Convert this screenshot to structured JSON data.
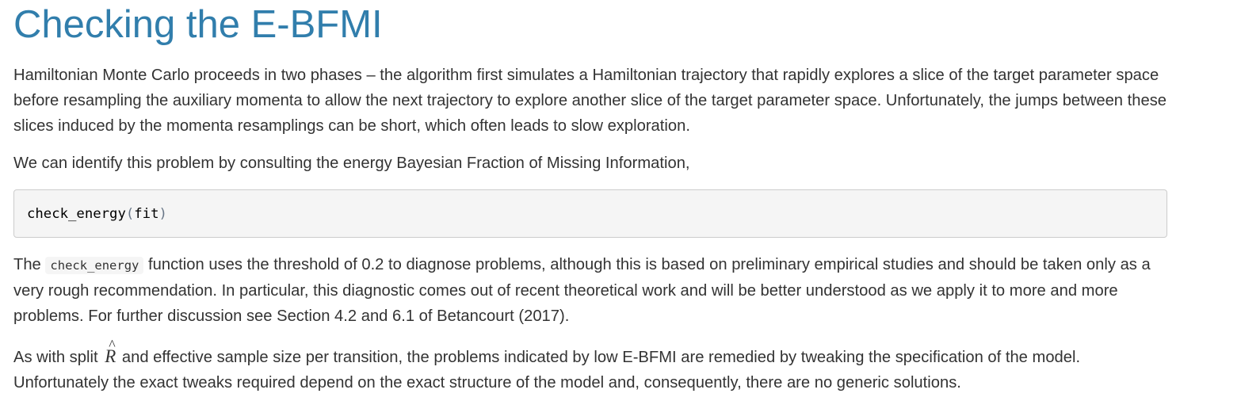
{
  "heading": "Checking the E-BFMI",
  "paragraph1": "Hamiltonian Monte Carlo proceeds in two phases – the algorithm first simulates a Hamiltonian trajectory that rapidly explores a slice of the target parameter space before resampling the auxiliary momenta to allow the next trajectory to explore another slice of the target parameter space. Unfortunately, the jumps between these slices induced by the momenta resamplings can be short, which often leads to slow exploration.",
  "paragraph2": "We can identify this problem by consulting the energy Bayesian Fraction of Missing Information,",
  "code_block": {
    "function_name": "check_energy",
    "open_paren": "(",
    "argument": "fit",
    "close_paren": ")"
  },
  "paragraph3": {
    "before_code": "The ",
    "inline_code": "check_energy",
    "after_code": " function uses the threshold of 0.2 to diagnose problems, although this is based on preliminary empirical studies and should be taken only as a very rough recommendation. In particular, this diagnostic comes out of recent theoretical work and will be better understood as we apply it to more and more problems. For further discussion see Section 4.2 and 6.1 of Betancourt (2017)."
  },
  "paragraph4": {
    "before_math": "As with split ",
    "math_symbol": "R",
    "math_accent": "^",
    "after_math": " and effective sample size per transition, the problems indicated by low E-BFMI are remedied by tweaking the specification of the model. Unfortunately the exact tweaks required depend on the exact structure of the model and, consequently, there are no generic solutions."
  },
  "colors": {
    "heading": "#317eac",
    "body_text": "#333333",
    "code_background": "#f5f5f5",
    "code_border": "#cccccc"
  }
}
